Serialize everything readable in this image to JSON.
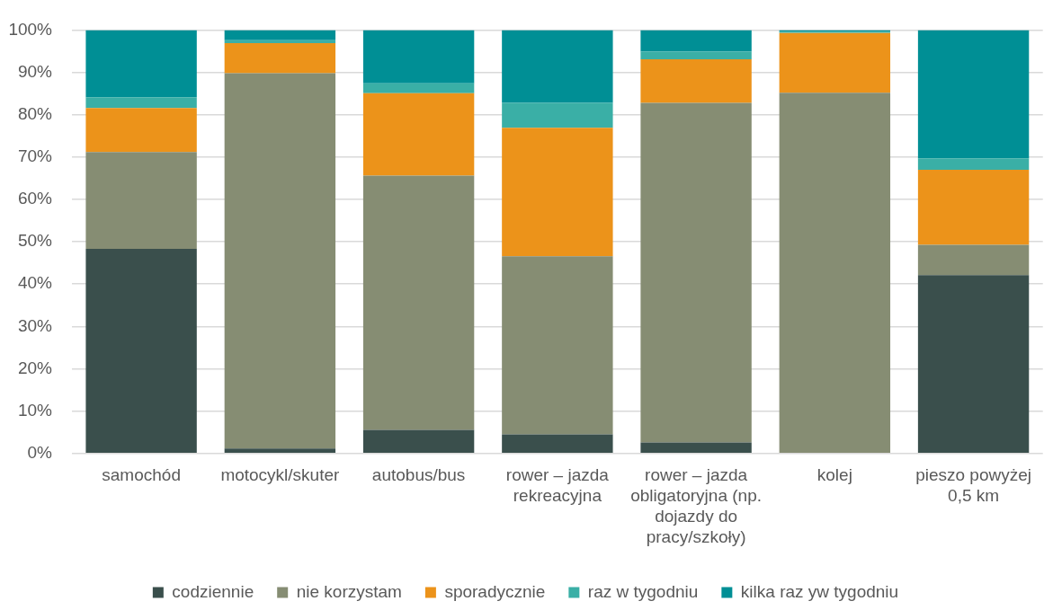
{
  "chart_data": {
    "type": "bar",
    "stacked": true,
    "categories": [
      "samochód",
      "motocykl/skuter",
      "autobus/bus",
      "rower – jazda rekreacyjna",
      "rower – jazda obligatoryjna (np. dojazdy do pracy/szkoły)",
      "kolej",
      "pieszo powyżej 0,5 km"
    ],
    "series": [
      {
        "name": "codziennie",
        "color": "#3a4f4c",
        "values": [
          48.3,
          1.2,
          5.6,
          4.5,
          2.6,
          0,
          42.1
        ]
      },
      {
        "name": "nie korzystam",
        "color": "#868d73",
        "values": [
          22.9,
          88.6,
          60.0,
          42.1,
          80.2,
          85.2,
          7.2
        ]
      },
      {
        "name": "sporadycznie",
        "color": "#ec931a",
        "values": [
          10.4,
          7.1,
          19.5,
          30.3,
          10.3,
          14.1,
          17.7
        ]
      },
      {
        "name": "raz w tygodniu",
        "color": "#3aafa6",
        "values": [
          2.5,
          0.7,
          2.3,
          5.9,
          1.8,
          0.3,
          2.7
        ]
      },
      {
        "name": "kilka raz yw tygodniu",
        "color": "#008f95",
        "values": [
          15.9,
          2.4,
          12.6,
          17.2,
          5.1,
          0.4,
          30.3
        ]
      }
    ],
    "ylim": [
      0,
      100
    ],
    "yticks": [
      {
        "value": 0,
        "label": "0%"
      },
      {
        "value": 10,
        "label": "10%"
      },
      {
        "value": 20,
        "label": "20%"
      },
      {
        "value": 30,
        "label": "30%"
      },
      {
        "value": 40,
        "label": "40%"
      },
      {
        "value": 50,
        "label": "50%"
      },
      {
        "value": 60,
        "label": "60%"
      },
      {
        "value": 70,
        "label": "70%"
      },
      {
        "value": 80,
        "label": "80%"
      },
      {
        "value": 90,
        "label": "90%"
      },
      {
        "value": 100,
        "label": "100%"
      }
    ],
    "grid": "y",
    "legend": "bottom"
  }
}
